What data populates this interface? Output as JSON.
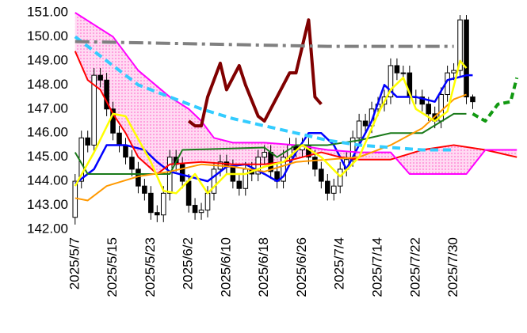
{
  "chart_data": {
    "type": "candlestick",
    "xlim": [
      -0.6,
      70.6
    ],
    "ylim": [
      142,
      151
    ],
    "yticks": [
      {
        "value": 142,
        "label": "142.00"
      },
      {
        "value": 143,
        "label": "143.00"
      },
      {
        "value": 144,
        "label": "144.00"
      },
      {
        "value": 145,
        "label": "145.00"
      },
      {
        "value": 146,
        "label": "146.00"
      },
      {
        "value": 147,
        "label": "147.00"
      },
      {
        "value": 148,
        "label": "148.00"
      },
      {
        "value": 149,
        "label": "149.00"
      },
      {
        "value": 150,
        "label": "150.00"
      },
      {
        "value": 151,
        "label": "151.00"
      }
    ],
    "xticks": [
      {
        "value": 0,
        "label": "2025/5/7"
      },
      {
        "value": 6,
        "label": "2025/5/15"
      },
      {
        "value": 12,
        "label": "2025/5/23"
      },
      {
        "value": 18,
        "label": "2025/6/2"
      },
      {
        "value": 24,
        "label": "2025/6/10"
      },
      {
        "value": 30,
        "label": "2025/6/18"
      },
      {
        "value": 36,
        "label": "2025/6/26"
      },
      {
        "value": 42,
        "label": "2025/7/4"
      },
      {
        "value": 48,
        "label": "2025/7/14"
      },
      {
        "value": 54,
        "label": "2025/7/22"
      },
      {
        "value": 60,
        "label": "2025/7/30"
      }
    ],
    "grid": false,
    "candles": {
      "up_color": "#ffffff",
      "down_color": "#000000",
      "x": [
        0,
        1,
        2,
        3,
        4,
        5,
        6,
        7,
        8,
        9,
        10,
        11,
        12,
        13,
        14,
        15,
        16,
        17,
        18,
        19,
        20,
        21,
        22,
        23,
        24,
        25,
        26,
        27,
        28,
        29,
        30,
        31,
        32,
        33,
        34,
        35,
        36,
        37,
        38,
        39,
        40,
        41,
        42,
        43,
        44,
        45,
        46,
        47,
        48,
        49,
        50,
        51,
        52,
        53,
        54,
        55,
        56,
        57,
        58,
        59,
        60,
        61,
        62,
        63
      ],
      "open": [
        142.5,
        144.0,
        145.8,
        145.5,
        148.4,
        148.2,
        147.0,
        146.0,
        145.5,
        145.0,
        144.5,
        143.8,
        143.5,
        142.7,
        142.6,
        143.5,
        145.0,
        144.7,
        144.0,
        143.0,
        142.7,
        142.8,
        143.5,
        144.5,
        144.8,
        144.6,
        144.0,
        143.7,
        144.5,
        144.3,
        145.0,
        145.2,
        144.4,
        144.0,
        145.0,
        145.5,
        145.3,
        145.5,
        145.0,
        144.5,
        144.0,
        143.5,
        143.8,
        144.5,
        144.9,
        145.8,
        146.5,
        146.3,
        147.0,
        147.2,
        147.5,
        148.8,
        148.5,
        148.5,
        147.5,
        147.5,
        147.2,
        146.8,
        146.5,
        147.6,
        148.5,
        148.6,
        150.7,
        147.5
      ],
      "high": [
        144.3,
        146.1,
        146.1,
        148.7,
        148.7,
        148.5,
        147.3,
        146.3,
        145.8,
        145.3,
        144.8,
        144.1,
        143.8,
        143.0,
        143.8,
        145.3,
        145.3,
        145.0,
        144.3,
        143.3,
        143.1,
        143.8,
        144.8,
        145.1,
        145.1,
        144.9,
        144.3,
        144.8,
        144.8,
        145.3,
        145.5,
        145.5,
        144.7,
        145.3,
        145.8,
        145.8,
        145.8,
        145.8,
        145.3,
        144.8,
        144.3,
        144.1,
        144.8,
        145.2,
        146.1,
        146.8,
        146.8,
        147.3,
        147.5,
        147.8,
        149.1,
        149.1,
        148.8,
        148.8,
        147.8,
        147.8,
        147.5,
        147.1,
        147.9,
        148.8,
        148.9,
        150.9,
        150.9,
        147.6
      ],
      "low": [
        142.2,
        143.7,
        145.2,
        145.2,
        147.9,
        146.7,
        145.7,
        145.2,
        144.7,
        144.2,
        143.5,
        143.2,
        142.4,
        142.3,
        142.3,
        143.2,
        144.4,
        143.7,
        142.7,
        142.4,
        142.4,
        142.5,
        143.2,
        144.2,
        144.3,
        143.7,
        143.4,
        143.4,
        144.0,
        144.0,
        144.7,
        144.1,
        143.7,
        143.7,
        144.7,
        145.0,
        145.0,
        144.7,
        144.2,
        143.7,
        143.2,
        143.2,
        143.5,
        144.2,
        144.6,
        145.5,
        146.0,
        146.0,
        146.7,
        146.9,
        147.2,
        148.2,
        148.2,
        147.2,
        147.2,
        146.9,
        146.5,
        146.2,
        146.2,
        147.3,
        148.2,
        148.3,
        147.2,
        147.0
      ],
      "close": [
        144.0,
        145.8,
        145.5,
        148.4,
        148.2,
        147.0,
        146.0,
        145.5,
        145.0,
        144.5,
        143.8,
        143.5,
        142.7,
        142.6,
        143.5,
        145.0,
        144.7,
        144.0,
        143.0,
        142.7,
        142.8,
        143.5,
        144.5,
        144.8,
        144.6,
        144.0,
        143.7,
        144.5,
        144.3,
        145.0,
        145.2,
        144.4,
        144.0,
        145.0,
        145.5,
        145.3,
        145.5,
        145.0,
        144.5,
        144.0,
        143.5,
        143.8,
        144.5,
        144.9,
        145.8,
        146.5,
        146.3,
        147.0,
        147.2,
        147.5,
        148.8,
        148.5,
        148.5,
        147.5,
        147.5,
        147.2,
        146.8,
        146.5,
        147.6,
        148.5,
        148.6,
        150.7,
        147.5,
        147.3
      ]
    },
    "cloud": {
      "between": [
        1,
        2
      ],
      "color": "#ff66cc"
    },
    "series": [
      {
        "color": "#0000ff",
        "width": 2.5,
        "dash": "none",
        "x": [
          0,
          3,
          5,
          8,
          11,
          13,
          15,
          18,
          21,
          24,
          27,
          30,
          32,
          33,
          35,
          37,
          39,
          41,
          43,
          45,
          47,
          49,
          51,
          54,
          57,
          59,
          62,
          63
        ],
        "values": [
          143.9,
          144.5,
          145.5,
          145.5,
          145.3,
          144.8,
          144.4,
          144.2,
          144.0,
          144.6,
          144.7,
          144.3,
          144.0,
          144.2,
          145.2,
          146.0,
          146.0,
          145.5,
          144.5,
          145.5,
          146.5,
          148.0,
          147.5,
          147.5,
          147.3,
          148.2,
          148.4,
          148.4
        ]
      },
      {
        "color": "#ff0000",
        "width": 2,
        "dash": "none",
        "x": [
          0,
          2,
          4,
          6,
          8,
          10,
          13,
          15,
          20,
          25,
          30,
          33,
          36,
          39,
          42,
          45,
          50,
          55,
          60,
          65,
          70
        ],
        "values": [
          149.4,
          148.2,
          147.8,
          146.8,
          146.0,
          145.0,
          144.3,
          144.7,
          144.8,
          144.7,
          144.7,
          144.8,
          145.0,
          145.2,
          145.0,
          144.9,
          144.9,
          145.3,
          145.5,
          145.3,
          145.0
        ]
      },
      {
        "color": "#ff00ff",
        "width": 2,
        "dash": "none",
        "x": [
          0,
          6,
          10,
          15,
          18,
          20,
          22,
          25,
          30,
          35,
          40,
          45,
          50,
          53,
          58,
          62,
          65,
          70
        ],
        "values": [
          151.0,
          150.0,
          148.6,
          147.5,
          147.0,
          146.5,
          145.8,
          145.6,
          145.6,
          145.5,
          145.3,
          145.2,
          145.2,
          144.3,
          144.3,
          144.3,
          145.3,
          145.3
        ]
      },
      {
        "color": "#1a7a1a",
        "width": 2,
        "dash": "none",
        "x": [
          0,
          2,
          15,
          17,
          30,
          32,
          35,
          40,
          45,
          50,
          55,
          60,
          62
        ],
        "values": [
          145.2,
          144.3,
          144.3,
          145.3,
          145.4,
          145.0,
          145.5,
          145.5,
          145.7,
          146.0,
          146.0,
          146.8,
          146.8
        ]
      },
      {
        "color": "#ff9900",
        "width": 2,
        "dash": "none",
        "x": [
          0,
          2,
          5,
          10,
          15,
          20,
          25,
          30,
          35,
          40,
          45,
          50,
          55,
          60,
          62
        ],
        "values": [
          143.3,
          143.2,
          143.8,
          144.2,
          144.4,
          144.7,
          144.6,
          144.4,
          144.8,
          144.9,
          145.0,
          145.5,
          146.2,
          147.4,
          147.6
        ]
      },
      {
        "color": "#ffff00",
        "width": 2.5,
        "dash": "none",
        "x": [
          0,
          3,
          6,
          8,
          12,
          14,
          16,
          19,
          21,
          24,
          27,
          30,
          33,
          36,
          39,
          42,
          45,
          48,
          50,
          52,
          54,
          57,
          59,
          61,
          62
        ],
        "values": [
          143.8,
          145.2,
          146.8,
          146.7,
          144.8,
          143.6,
          143.5,
          144.3,
          143.5,
          144.3,
          144.3,
          144.6,
          144.8,
          145.5,
          145.0,
          144.2,
          145.0,
          146.8,
          147.8,
          148.3,
          147.0,
          146.5,
          146.9,
          149.0,
          148.7
        ]
      },
      {
        "color": "#800000",
        "width": 4,
        "dash": "none",
        "x": [
          18,
          19,
          20,
          21,
          23,
          24,
          26,
          27,
          29,
          30,
          32,
          34,
          35,
          37,
          38,
          39
        ],
        "values": [
          146.5,
          146.3,
          146.3,
          147.5,
          148.9,
          147.8,
          148.8,
          148.0,
          146.7,
          146.5,
          147.5,
          148.5,
          148.5,
          150.7,
          147.5,
          147.2
        ]
      },
      {
        "color": "#33ccff",
        "width": 4,
        "dash": "10 6",
        "x": [
          0,
          5,
          10,
          15,
          20,
          25,
          30,
          35,
          40,
          45,
          50,
          55,
          60
        ],
        "values": [
          150.0,
          149.0,
          148.0,
          147.5,
          147.0,
          146.6,
          146.3,
          146.0,
          145.7,
          145.5,
          145.4,
          145.3,
          145.3
        ]
      },
      {
        "color": "#808080",
        "width": 4,
        "dash": "18 6 4 6",
        "x": [
          0,
          20,
          40,
          60
        ],
        "values": [
          149.8,
          149.7,
          149.6,
          149.6
        ]
      },
      {
        "color": "#119911",
        "width": 4,
        "dash": "8 5",
        "x": [
          63,
          65,
          67,
          69,
          70
        ],
        "values": [
          146.8,
          146.5,
          147.2,
          147.3,
          148.3
        ]
      }
    ]
  }
}
